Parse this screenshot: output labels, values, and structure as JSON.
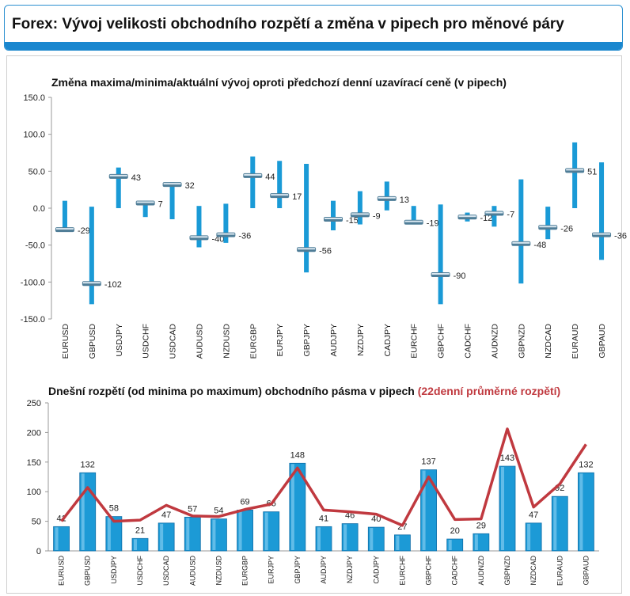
{
  "header": {
    "title": "Forex: Vývoj velikosti obchodního rozpětí a změna v pipech pro měnové páry"
  },
  "chart_data": [
    {
      "type": "candlestick-range",
      "title": "Změna maxima/minima/aktuální vývoj oproti předchozí denní uzavírací ceně (v pipech)",
      "ylim": [
        -150,
        150
      ],
      "yticks": [
        "150.0",
        "100.0",
        "50.0",
        "0.0",
        "-50.0",
        "-100.0",
        "-150.0"
      ],
      "grid": false,
      "colors": {
        "range": "#1a9ad6",
        "marker": "#6e8fa3"
      },
      "categories": [
        "EURUSD",
        "GBPUSD",
        "USDJPY",
        "USDCHF",
        "USDCAD",
        "AUDUSD",
        "NZDUSD",
        "EURGBP",
        "EURJPY",
        "GBPJPY",
        "AUDJPY",
        "NZDJPY",
        "CADJPY",
        "EURCHF",
        "GBPCHF",
        "CADCHF",
        "AUDNZD",
        "GBPNZD",
        "NZDCAD",
        "EURAUD",
        "GBPAUD"
      ],
      "high": [
        10,
        2,
        55,
        10,
        35,
        3,
        6,
        70,
        64,
        60,
        10,
        23,
        36,
        3,
        5,
        -6,
        3,
        39,
        2,
        89,
        62
      ],
      "low": [
        -30,
        -130,
        0,
        -12,
        -15,
        -53,
        -47,
        0,
        0,
        -87,
        -30,
        -22,
        -3,
        -22,
        -130,
        -18,
        -25,
        -102,
        -42,
        0,
        -70
      ],
      "current": [
        -29,
        -102,
        43,
        7,
        32,
        -40,
        -36,
        44,
        17,
        -56,
        -15,
        -9,
        13,
        -19,
        -90,
        -12,
        -7,
        -48,
        -26,
        51,
        -36
      ]
    },
    {
      "type": "bar",
      "title": "Dnešní rozpětí (od minima po maximum) obchodního pásma v pipech",
      "title_suffix": "(22denní průměrné rozpětí)",
      "ylim": [
        0,
        250
      ],
      "yticks": [
        "250",
        "200",
        "150",
        "100",
        "50",
        "0"
      ],
      "grid": false,
      "colors": {
        "bar": "#1c9ad6",
        "line": "#c0393f",
        "suffix": "#c0393f"
      },
      "categories": [
        "EURUSD",
        "GBPUSD",
        "USDJPY",
        "USDCHF",
        "USDCAD",
        "AUDUSD",
        "NZDUSD",
        "EURGBP",
        "EURJPY",
        "GBPJPY",
        "AUDJPY",
        "NZDJPY",
        "CADJPY",
        "EURCHF",
        "GBPCHF",
        "CADCHF",
        "AUDNZD",
        "GBPNZD",
        "NZDCAD",
        "EURAUD",
        "GBPAUD"
      ],
      "values": [
        41,
        132,
        58,
        21,
        47,
        57,
        54,
        69,
        66,
        148,
        41,
        46,
        40,
        27,
        137,
        20,
        29,
        143,
        47,
        92,
        132
      ],
      "average": [
        50,
        107,
        50,
        52,
        77,
        59,
        58,
        70,
        79,
        140,
        69,
        66,
        62,
        43,
        125,
        53,
        54,
        206,
        74,
        113,
        180
      ]
    }
  ]
}
